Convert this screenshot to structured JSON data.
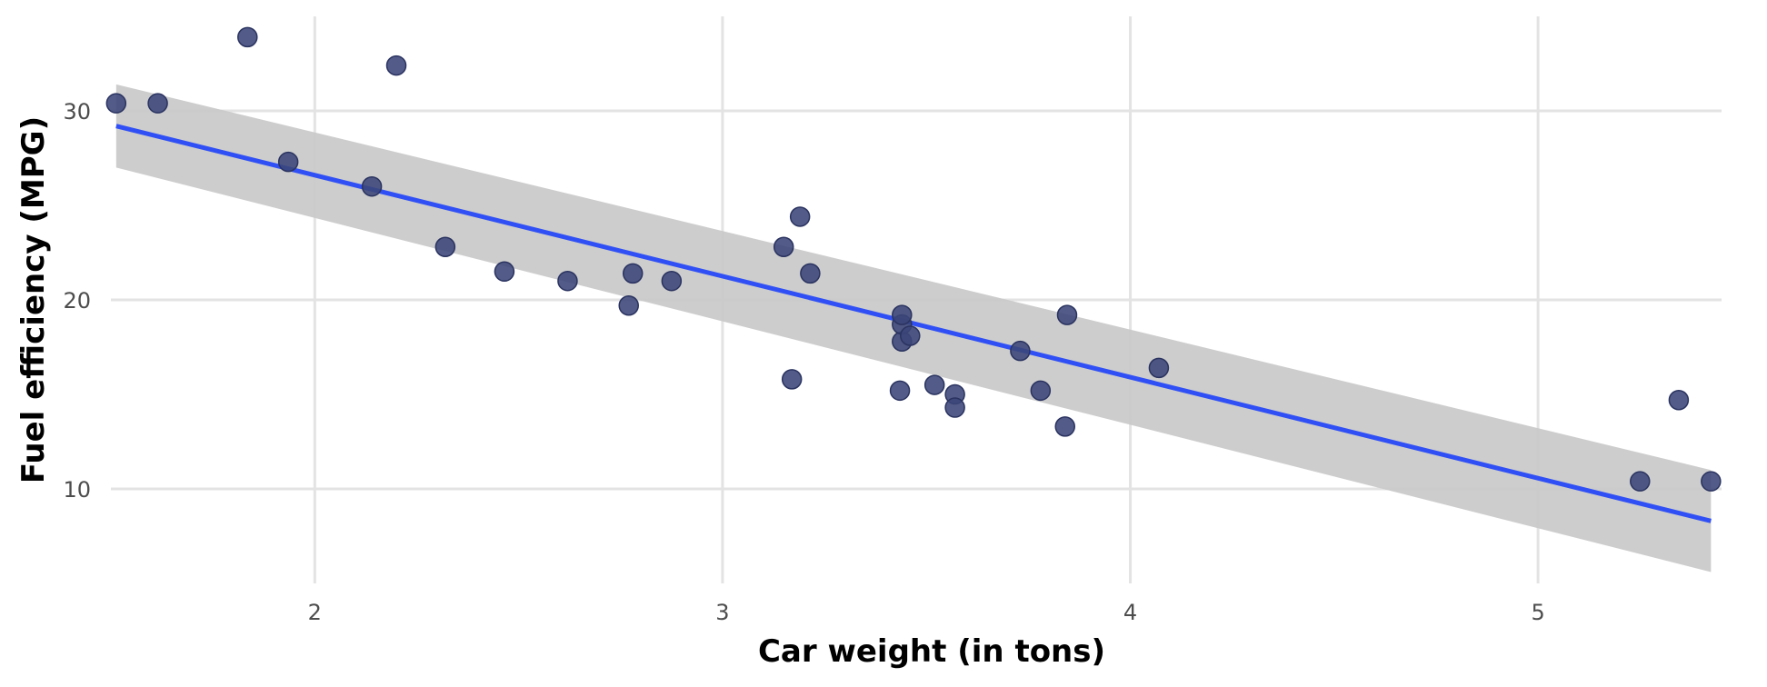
{
  "chart_data": {
    "type": "scatter",
    "title": "",
    "xlabel": "Car weight (in tons)",
    "ylabel": "Fuel efficiency (MPG)",
    "xlim": [
      1.5,
      5.45
    ],
    "ylim": [
      5,
      35
    ],
    "x_ticks": [
      2,
      3,
      4,
      5
    ],
    "y_ticks": [
      10,
      20,
      30
    ],
    "grid": true,
    "legend": "none",
    "colors": {
      "point": "#3b4677",
      "point_stroke": "#2a3360",
      "fit_line": "#3050f5",
      "confidence_band": "#c8c8c8",
      "grid": "#e3e3e3"
    },
    "points": [
      {
        "x": 1.513,
        "y": 30.4
      },
      {
        "x": 1.615,
        "y": 30.4
      },
      {
        "x": 1.835,
        "y": 33.9
      },
      {
        "x": 1.935,
        "y": 27.3
      },
      {
        "x": 2.14,
        "y": 26.0
      },
      {
        "x": 2.2,
        "y": 32.4
      },
      {
        "x": 2.32,
        "y": 22.8
      },
      {
        "x": 2.465,
        "y": 21.5
      },
      {
        "x": 2.62,
        "y": 21.0
      },
      {
        "x": 2.77,
        "y": 19.7
      },
      {
        "x": 2.78,
        "y": 21.4
      },
      {
        "x": 2.875,
        "y": 21.0
      },
      {
        "x": 3.15,
        "y": 22.8
      },
      {
        "x": 3.17,
        "y": 15.8
      },
      {
        "x": 3.19,
        "y": 24.4
      },
      {
        "x": 3.215,
        "y": 21.4
      },
      {
        "x": 3.435,
        "y": 15.2
      },
      {
        "x": 3.44,
        "y": 17.8
      },
      {
        "x": 3.44,
        "y": 18.7
      },
      {
        "x": 3.44,
        "y": 19.2
      },
      {
        "x": 3.46,
        "y": 18.1
      },
      {
        "x": 3.52,
        "y": 15.5
      },
      {
        "x": 3.57,
        "y": 15.0
      },
      {
        "x": 3.57,
        "y": 14.3
      },
      {
        "x": 3.73,
        "y": 17.3
      },
      {
        "x": 3.78,
        "y": 15.2
      },
      {
        "x": 3.84,
        "y": 13.3
      },
      {
        "x": 3.845,
        "y": 19.2
      },
      {
        "x": 4.07,
        "y": 16.4
      },
      {
        "x": 5.25,
        "y": 10.4
      },
      {
        "x": 5.345,
        "y": 14.7
      },
      {
        "x": 5.424,
        "y": 10.4
      }
    ],
    "fit": {
      "method": "linear",
      "x": [
        1.513,
        5.424
      ],
      "y": [
        29.2,
        8.3
      ],
      "band_lower": [
        27.0,
        5.6
      ],
      "band_upper": [
        31.4,
        11.0
      ]
    }
  }
}
